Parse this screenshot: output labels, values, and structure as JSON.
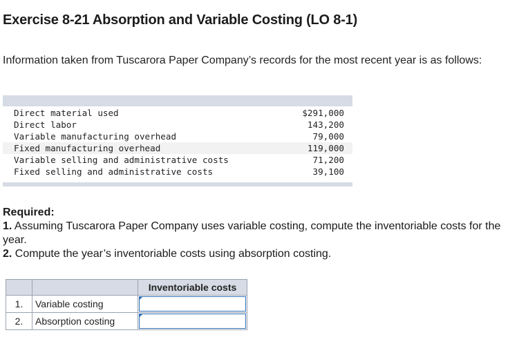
{
  "header": {
    "title": "Exercise 8-21 Absorption and Variable Costing (LO 8-1)"
  },
  "intro": {
    "text": "Information taken from Tuscarora Paper Company’s records for the most recent year is as follows:"
  },
  "records": [
    {
      "label": "Direct material used",
      "value": "$291,000"
    },
    {
      "label": "Direct labor",
      "value": "143,200"
    },
    {
      "label": "Variable manufacturing overhead",
      "value": "79,000"
    },
    {
      "label": "Fixed manufacturing overhead",
      "value": "119,000"
    },
    {
      "label": "Variable selling and administrative costs",
      "value": "71,200"
    },
    {
      "label": "Fixed selling and administrative costs",
      "value": "39,100"
    }
  ],
  "required": {
    "heading": "Required:",
    "items": [
      {
        "num": "1.",
        "text": "Assuming Tuscarora Paper Company uses variable costing, compute the inventoriable costs for the year."
      },
      {
        "num": "2.",
        "text": "Compute the year’s inventoriable costs using absorption costing."
      }
    ]
  },
  "answer_table": {
    "column_header": "Inventoriable costs",
    "rows": [
      {
        "num": "1.",
        "label": "Variable costing",
        "value": ""
      },
      {
        "num": "2.",
        "label": "Absorption costing",
        "value": ""
      }
    ]
  }
}
